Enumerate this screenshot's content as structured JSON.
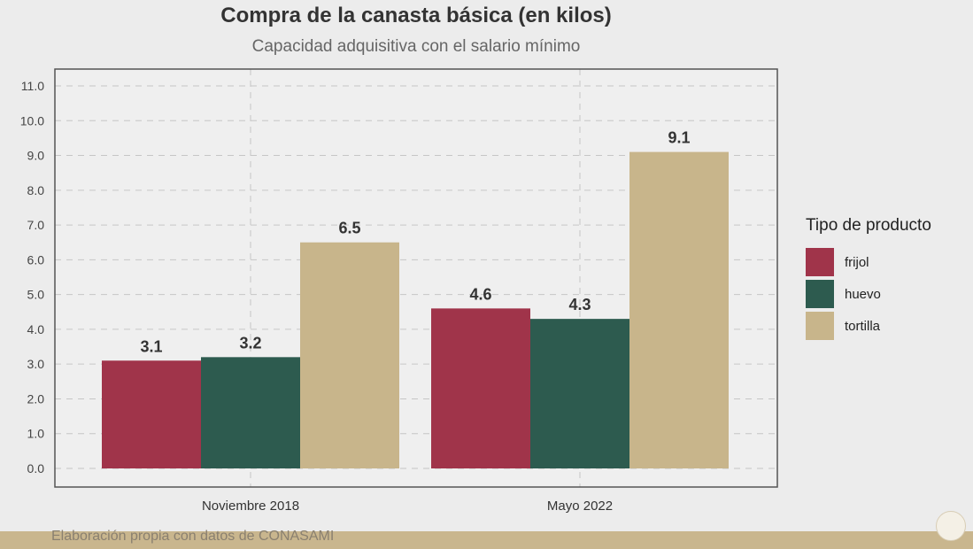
{
  "chart_data": {
    "type": "bar",
    "title": "Compra de la canasta básica (en kilos)",
    "subtitle": "Capacidad adquisitiva con el salario mínimo",
    "categories": [
      "Noviembre 2018",
      "Mayo 2022"
    ],
    "series": [
      {
        "name": "frijol",
        "values": [
          3.1,
          4.6
        ],
        "color": "#a0344a"
      },
      {
        "name": "huevo",
        "values": [
          3.2,
          4.3
        ],
        "color": "#2d5b4f"
      },
      {
        "name": "tortilla",
        "values": [
          6.5,
          9.1
        ],
        "color": "#c8b58b"
      }
    ],
    "data_labels": [
      [
        "3.1",
        "4.6"
      ],
      [
        "3.2",
        "4.3"
      ],
      [
        "6.5",
        "9.1"
      ]
    ],
    "yticks": [
      "0.0",
      "1.0",
      "2.0",
      "3.0",
      "4.0",
      "5.0",
      "6.0",
      "7.0",
      "8.0",
      "9.0",
      "10.0",
      "11.0"
    ],
    "ylim": [
      0,
      11
    ],
    "grid": true,
    "legend_title": "Tipo de producto",
    "legend_position": "right"
  },
  "footer": {
    "source": "Elaboración propia con datos de CONASAMI"
  }
}
